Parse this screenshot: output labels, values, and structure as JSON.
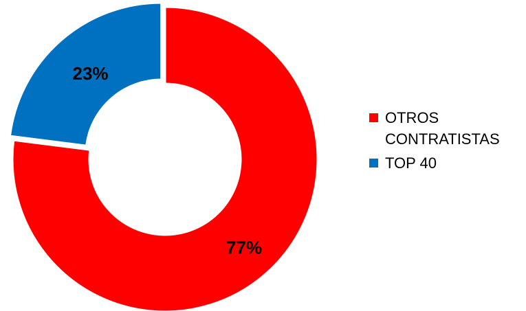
{
  "chart_data": {
    "type": "pie",
    "variant": "donut",
    "title": "",
    "slices": [
      {
        "name": "OTROS CONTRATISTAS",
        "value": 77,
        "label": "77%",
        "color": "#ff0000"
      },
      {
        "name": "TOP 40",
        "value": 23,
        "label": "23%",
        "color": "#0070c0"
      }
    ],
    "legend_position": "right",
    "exploded_slice": "TOP 40"
  }
}
